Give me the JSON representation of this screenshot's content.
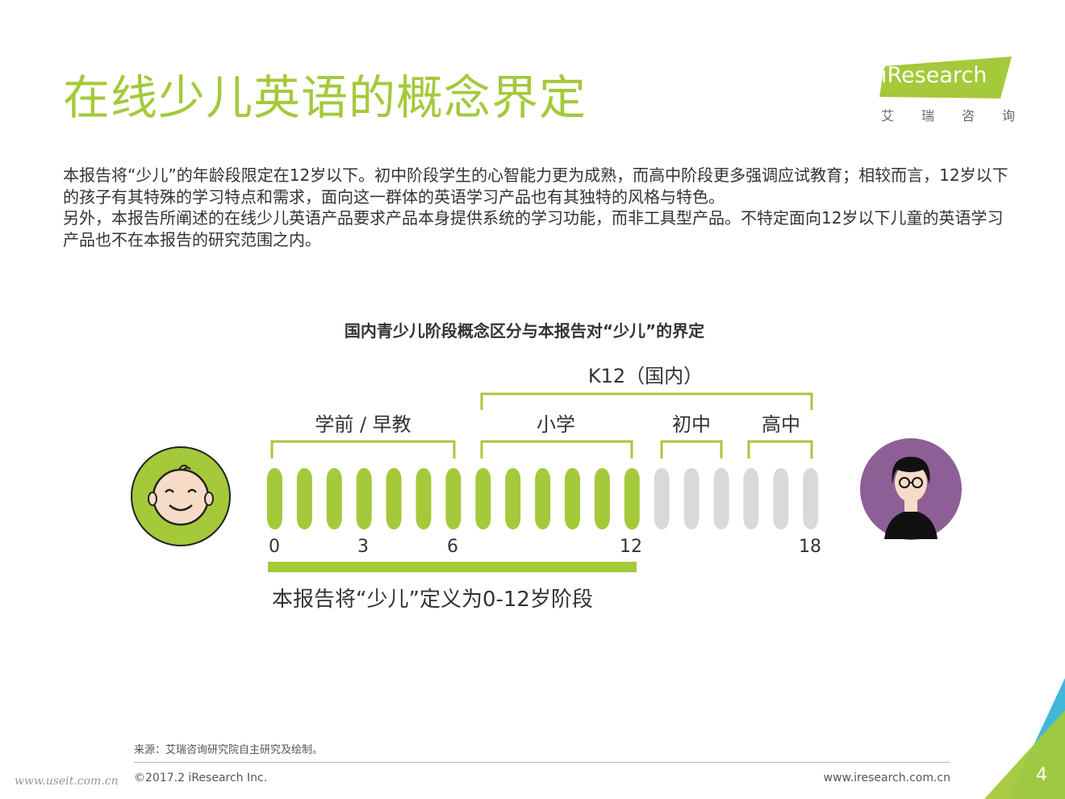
{
  "header": {
    "title": "在线少儿英语的概念界定",
    "logo_text": "iResearch",
    "logo_cn": [
      "艾",
      "瑞",
      "咨",
      "询"
    ]
  },
  "intro": {
    "para1": "本报告将“少儿”的年龄段限定在12岁以下。初中阶段学生的心智能力更为成熟，而高中阶段更多强调应试教育；相较而言，12岁以下的孩子有其特殊的学习特点和需求，面向这一群体的英语学习产品也有其独特的风格与特色。",
    "para2": "另外，本报告所阐述的在线少儿英语产品要求产品本身提供系统的学习功能，而非工具型产品。不特定面向12岁以下儿童的英语学习产品也不在本报告的研究范围之内。"
  },
  "diagram": {
    "title": "国内青少儿阶段概念区分与本报告对“少儿”的界定",
    "k12_label": "K12（国内）",
    "stage_labels": {
      "preschool": "学前 / 早教",
      "primary": "小学",
      "junior": "初中",
      "senior": "高中"
    },
    "ticks": [
      "0",
      "3",
      "6",
      "12",
      "18"
    ],
    "defined_label": "本报告将“少儿”定义为0-12岁阶段",
    "green_bars": 13,
    "gray_bars": 6,
    "colors": {
      "accent": "#a4c93a",
      "inactive": "#d9d9d9",
      "avatar_child_bg": "#a4c93a",
      "avatar_teen_bg": "#8e5f96"
    }
  },
  "footer": {
    "source": "来源：艾瑞咨询研究院自主研究及绘制。",
    "copyright": "©2017.2 iResearch Inc.",
    "website": "www.iresearch.com.cn",
    "watermark": "www.useit.com.cn",
    "page_number": "4"
  }
}
